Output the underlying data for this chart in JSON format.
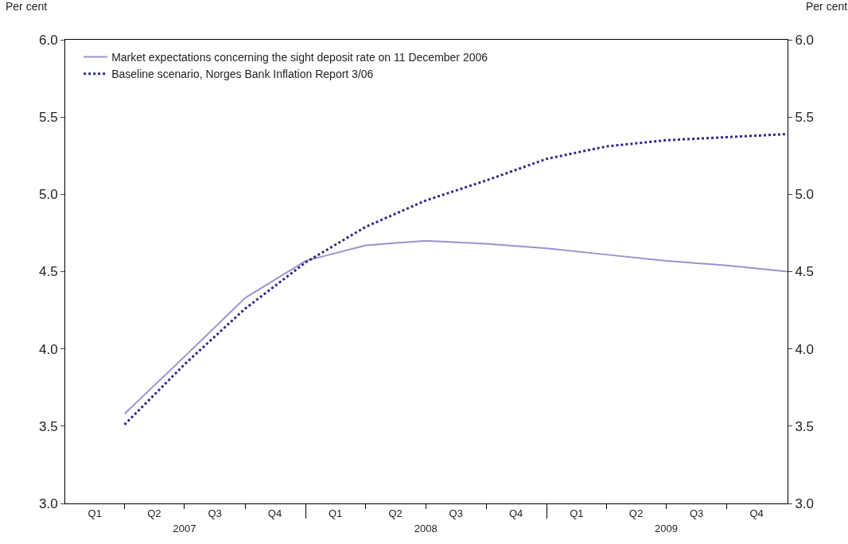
{
  "chart_data": {
    "type": "line",
    "ylabel": "Per cent",
    "y2label": "Per cent",
    "x": [
      "2007-04-01",
      "2007-07-01",
      "2007-10-01",
      "2008-01-01",
      "2008-04-01",
      "2008-07-01",
      "2008-10-01",
      "2009-01-01",
      "2009-04-01",
      "2009-07-01",
      "2009-10-01",
      "2010-01-01"
    ],
    "series": [
      {
        "name": "Market expectations concerning the sight deposit rate on 11 December 2006",
        "color": "#9b93cf",
        "line_style": "solid",
        "values": [
          3.58,
          3.95,
          4.33,
          4.57,
          4.67,
          4.7,
          4.68,
          4.65,
          4.61,
          4.57,
          4.54,
          4.5
        ]
      },
      {
        "name": "Baseline scenario, Norges Bank Inflation Report 3/06",
        "color": "#2e2a8c",
        "line_style": "dotted",
        "values": [
          3.51,
          3.9,
          4.26,
          4.56,
          4.79,
          4.96,
          5.09,
          5.23,
          5.31,
          5.35,
          5.37,
          5.39
        ]
      }
    ],
    "xlim": [
      "2007-01-01",
      "2010-01-01"
    ],
    "xticks": [
      {
        "value": "2007-02-15",
        "label": "Q1"
      },
      {
        "value": "2007-04-01",
        "label": null
      },
      {
        "value": "2007-05-16",
        "label": "Q2"
      },
      {
        "value": "2007-07-01",
        "label": null
      },
      {
        "value": "2007-08-16",
        "label": "Q3"
      },
      {
        "value": "2007-10-01",
        "label": null
      },
      {
        "value": "2007-11-15",
        "label": "Q4"
      },
      {
        "value": "2008-01-01",
        "label": null
      },
      {
        "value": "2008-02-15",
        "label": "Q1"
      },
      {
        "value": "2008-04-01",
        "label": null
      },
      {
        "value": "2008-05-16",
        "label": "Q2"
      },
      {
        "value": "2008-07-01",
        "label": null
      },
      {
        "value": "2008-08-16",
        "label": "Q3"
      },
      {
        "value": "2008-10-01",
        "label": null
      },
      {
        "value": "2008-11-15",
        "label": "Q4"
      },
      {
        "value": "2009-01-01",
        "label": null
      },
      {
        "value": "2009-02-15",
        "label": "Q1"
      },
      {
        "value": "2009-04-01",
        "label": null
      },
      {
        "value": "2009-05-16",
        "label": "Q2"
      },
      {
        "value": "2009-07-01",
        "label": null
      },
      {
        "value": "2009-08-16",
        "label": "Q3"
      },
      {
        "value": "2009-10-01",
        "label": null
      },
      {
        "value": "2009-11-15",
        "label": "Q4"
      }
    ],
    "x2lim": [
      "2007-01-01",
      "2010-01-01"
    ],
    "x2ticks": [
      {
        "value": "2007-07-01",
        "label": "2007"
      },
      {
        "value": "2008-07-01",
        "label": "2008"
      },
      {
        "value": "2009-07-01",
        "label": "2009"
      }
    ],
    "ylim": [
      3,
      6
    ],
    "yticks": [
      {
        "value": 3,
        "label": "3.0"
      },
      {
        "value": 3.5,
        "label": "3.5"
      },
      {
        "value": 4,
        "label": "4.0"
      },
      {
        "value": 4.5,
        "label": "4.5"
      },
      {
        "value": 5,
        "label": "5.0"
      },
      {
        "value": 5.5,
        "label": "5.5"
      },
      {
        "value": 6,
        "label": "6.0"
      }
    ],
    "y2lim": [
      3,
      6
    ],
    "y2ticks": [
      {
        "value": 3,
        "label": "3.0"
      },
      {
        "value": 3.5,
        "label": "3.5"
      },
      {
        "value": 4,
        "label": "4.0"
      },
      {
        "value": 4.5,
        "label": "4.5"
      },
      {
        "value": 5,
        "label": "5.0"
      },
      {
        "value": 5.5,
        "label": "5.5"
      },
      {
        "value": 6,
        "label": "6.0"
      }
    ],
    "legend": "top left",
    "grid": false,
    "marker": "none"
  }
}
